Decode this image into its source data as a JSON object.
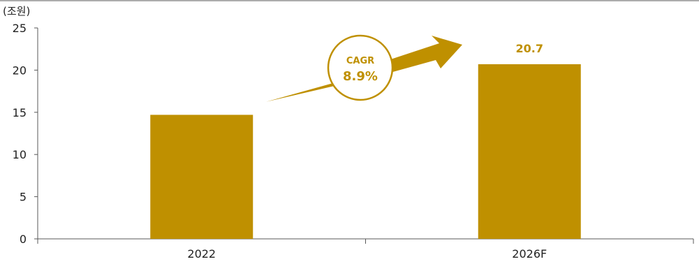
{
  "chart_data": {
    "type": "bar",
    "unit_label": "(조원)",
    "categories": [
      "2022",
      "2026F"
    ],
    "values": [
      14.7,
      20.7
    ],
    "data_labels": [
      "",
      "20.7"
    ],
    "ylim": [
      0,
      25
    ],
    "yticks": [
      0,
      5,
      10,
      15,
      20,
      25
    ],
    "grid": false,
    "annotation": {
      "title": "CAGR",
      "value": "8.9%"
    },
    "colors": {
      "bar": "#BF9000",
      "axis": "#595959",
      "text": "#222222"
    }
  }
}
